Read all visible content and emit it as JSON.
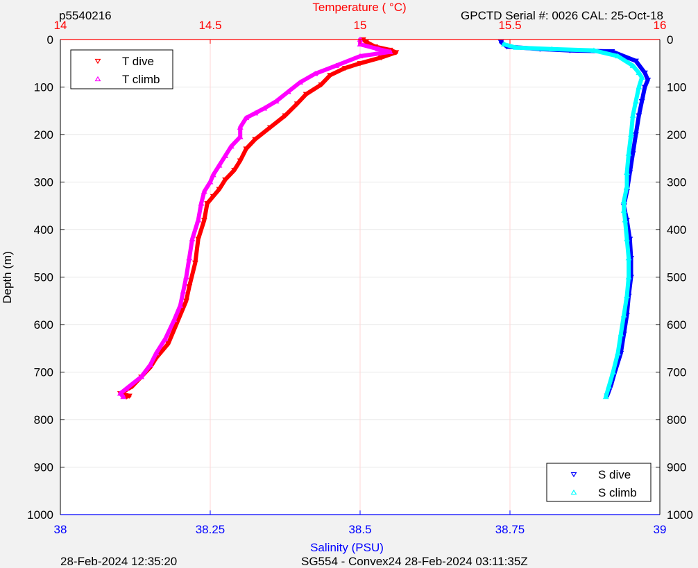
{
  "header": {
    "left": "p5540216",
    "right": "GPCTD Serial #: 0026 CAL: 25-Oct-18"
  },
  "footer": {
    "left": "28-Feb-2024 12:35:20",
    "center": "SG554 - Convex24 28-Feb-2024 03:11:35Z"
  },
  "colors": {
    "temperature_axis": "#ff0000",
    "salinity_axis": "#0000ff",
    "t_dive": "#ff0000",
    "t_climb": "#ff00ff",
    "s_dive": "#0000ff",
    "s_climb": "#00ffff",
    "grid": "#e6e6e6",
    "temperature_grid": "#ffd6d6",
    "background": "#f2f2f2",
    "plot_area": "#ffffff"
  },
  "chart_data": {
    "type": "scatter",
    "ylabel": "Depth (m)",
    "ylim": [
      0,
      1000
    ],
    "yticks": [
      "0",
      "100",
      "200",
      "300",
      "400",
      "500",
      "600",
      "700",
      "800",
      "900",
      "1000"
    ],
    "y_reversed": true,
    "grid": true,
    "top_axis": {
      "label": "Temperature (   °C)",
      "lim": [
        14,
        16
      ],
      "ticks": [
        "14",
        "14.5",
        "15",
        "15.5",
        "16"
      ]
    },
    "bottom_axis": {
      "label": "Salinity (PSU)",
      "lim": [
        38,
        39
      ],
      "ticks": [
        "38",
        "38.25",
        "38.5",
        "38.75",
        "39"
      ]
    },
    "legends": [
      {
        "position": "top-left",
        "entries": [
          {
            "label": "T dive",
            "marker": "triangle-down",
            "color": "#ff0000"
          },
          {
            "label": "T climb",
            "marker": "triangle-up",
            "color": "#ff00ff"
          }
        ]
      },
      {
        "position": "bottom-right",
        "entries": [
          {
            "label": "S dive",
            "marker": "triangle-down",
            "color": "#0000ff"
          },
          {
            "label": "S climb",
            "marker": "triangle-up",
            "color": "#00ffff"
          }
        ]
      }
    ],
    "series": [
      {
        "name": "T dive",
        "axis": "temperature",
        "marker": "triangle-down",
        "color": "#ff0000",
        "points": [
          [
            15.01,
            0
          ],
          [
            15.02,
            5
          ],
          [
            15.05,
            15
          ],
          [
            15.1,
            22
          ],
          [
            15.12,
            27
          ],
          [
            15.07,
            38
          ],
          [
            15.0,
            50
          ],
          [
            14.95,
            60
          ],
          [
            14.9,
            75
          ],
          [
            14.87,
            95
          ],
          [
            14.82,
            115
          ],
          [
            14.79,
            135
          ],
          [
            14.75,
            160
          ],
          [
            14.7,
            185
          ],
          [
            14.65,
            210
          ],
          [
            14.62,
            230
          ],
          [
            14.6,
            255
          ],
          [
            14.58,
            275
          ],
          [
            14.55,
            295
          ],
          [
            14.53,
            315
          ],
          [
            14.51,
            330
          ],
          [
            14.49,
            345
          ],
          [
            14.48,
            380
          ],
          [
            14.46,
            420
          ],
          [
            14.45,
            470
          ],
          [
            14.43,
            520
          ],
          [
            14.42,
            550
          ],
          [
            14.4,
            580
          ],
          [
            14.38,
            610
          ],
          [
            14.36,
            640
          ],
          [
            14.32,
            670
          ],
          [
            14.3,
            690
          ],
          [
            14.27,
            710
          ],
          [
            14.24,
            730
          ],
          [
            14.2,
            745
          ],
          [
            14.23,
            750
          ],
          [
            14.22,
            752
          ]
        ]
      },
      {
        "name": "T climb",
        "axis": "temperature",
        "marker": "triangle-up",
        "color": "#ff00ff",
        "points": [
          [
            15.0,
            0
          ],
          [
            15.0,
            10
          ],
          [
            15.06,
            20
          ],
          [
            15.1,
            26
          ],
          [
            15.0,
            35
          ],
          [
            14.92,
            55
          ],
          [
            14.85,
            72
          ],
          [
            14.8,
            90
          ],
          [
            14.76,
            110
          ],
          [
            14.72,
            130
          ],
          [
            14.68,
            145
          ],
          [
            14.65,
            155
          ],
          [
            14.62,
            165
          ],
          [
            14.6,
            185
          ],
          [
            14.6,
            205
          ],
          [
            14.57,
            225
          ],
          [
            14.55,
            245
          ],
          [
            14.53,
            265
          ],
          [
            14.51,
            285
          ],
          [
            14.5,
            300
          ],
          [
            14.48,
            320
          ],
          [
            14.47,
            345
          ],
          [
            14.46,
            380
          ],
          [
            14.44,
            420
          ],
          [
            14.43,
            460
          ],
          [
            14.42,
            500
          ],
          [
            14.41,
            530
          ],
          [
            14.4,
            560
          ],
          [
            14.38,
            590
          ],
          [
            14.35,
            630
          ],
          [
            14.32,
            660
          ],
          [
            14.3,
            685
          ],
          [
            14.27,
            710
          ],
          [
            14.22,
            735
          ],
          [
            14.2,
            745
          ],
          [
            14.21,
            752
          ]
        ]
      },
      {
        "name": "S dive",
        "axis": "salinity",
        "marker": "triangle-down",
        "color": "#0000ff",
        "points": [
          [
            38.735,
            5
          ],
          [
            38.745,
            15
          ],
          [
            38.8,
            20
          ],
          [
            38.85,
            23
          ],
          [
            38.92,
            25
          ],
          [
            38.96,
            45
          ],
          [
            38.975,
            70
          ],
          [
            38.98,
            85
          ],
          [
            38.975,
            100
          ],
          [
            38.97,
            130
          ],
          [
            38.965,
            160
          ],
          [
            38.96,
            200
          ],
          [
            38.955,
            240
          ],
          [
            38.95,
            280
          ],
          [
            38.945,
            320
          ],
          [
            38.94,
            350
          ],
          [
            38.945,
            380
          ],
          [
            38.95,
            420
          ],
          [
            38.952,
            460
          ],
          [
            38.952,
            500
          ],
          [
            38.948,
            540
          ],
          [
            38.945,
            580
          ],
          [
            38.94,
            620
          ],
          [
            38.935,
            660
          ],
          [
            38.925,
            700
          ],
          [
            38.918,
            730
          ],
          [
            38.912,
            750
          ]
        ]
      },
      {
        "name": "S climb",
        "axis": "salinity",
        "marker": "triangle-up",
        "color": "#00ffff",
        "points": [
          [
            38.74,
            10
          ],
          [
            38.76,
            17
          ],
          [
            38.82,
            20
          ],
          [
            38.89,
            23
          ],
          [
            38.93,
            35
          ],
          [
            38.955,
            55
          ],
          [
            38.965,
            70
          ],
          [
            38.97,
            80
          ],
          [
            38.965,
            100
          ],
          [
            38.96,
            130
          ],
          [
            38.955,
            160
          ],
          [
            38.952,
            200
          ],
          [
            38.948,
            240
          ],
          [
            38.945,
            280
          ],
          [
            38.945,
            310
          ],
          [
            38.94,
            340
          ],
          [
            38.94,
            360
          ],
          [
            38.942,
            380
          ],
          [
            38.945,
            420
          ],
          [
            38.948,
            460
          ],
          [
            38.948,
            500
          ],
          [
            38.945,
            540
          ],
          [
            38.94,
            580
          ],
          [
            38.935,
            620
          ],
          [
            38.93,
            660
          ],
          [
            38.922,
            700
          ],
          [
            38.915,
            730
          ],
          [
            38.91,
            752
          ]
        ]
      }
    ]
  }
}
